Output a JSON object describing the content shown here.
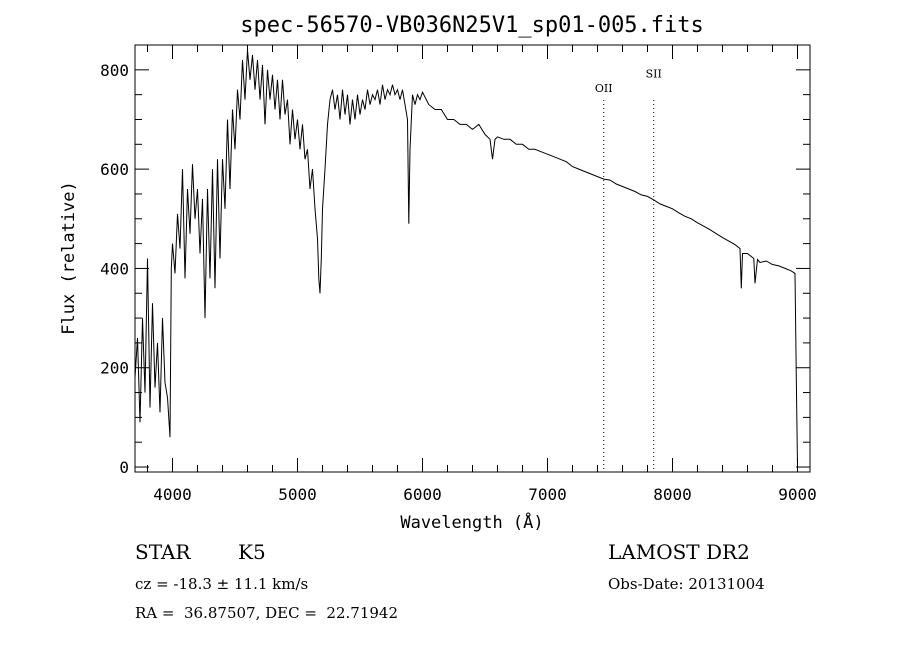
{
  "chart_data": {
    "type": "line",
    "title": "spec-56570-VB036N25V1_sp01-005.fits",
    "xlabel": "Wavelength (Å)",
    "ylabel": "Flux (relative)",
    "xlim": [
      3700,
      9100
    ],
    "ylim": [
      -10,
      850
    ],
    "x_ticks": [
      4000,
      5000,
      6000,
      7000,
      8000,
      9000
    ],
    "y_ticks": [
      0,
      200,
      400,
      600,
      800
    ],
    "grid": false,
    "line_color": "#000000",
    "series": [
      {
        "name": "",
        "points": [
          [
            3700,
            180
          ],
          [
            3720,
            260
          ],
          [
            3740,
            90
          ],
          [
            3760,
            300
          ],
          [
            3780,
            150
          ],
          [
            3800,
            420
          ],
          [
            3820,
            120
          ],
          [
            3840,
            330
          ],
          [
            3860,
            160
          ],
          [
            3880,
            250
          ],
          [
            3900,
            110
          ],
          [
            3920,
            300
          ],
          [
            3940,
            170
          ],
          [
            3960,
            140
          ],
          [
            3980,
            60
          ],
          [
            3990,
            400
          ],
          [
            4000,
            450
          ],
          [
            4020,
            390
          ],
          [
            4040,
            510
          ],
          [
            4060,
            440
          ],
          [
            4080,
            600
          ],
          [
            4100,
            380
          ],
          [
            4120,
            560
          ],
          [
            4140,
            470
          ],
          [
            4160,
            610
          ],
          [
            4180,
            500
          ],
          [
            4200,
            560
          ],
          [
            4220,
            430
          ],
          [
            4240,
            540
          ],
          [
            4260,
            300
          ],
          [
            4280,
            560
          ],
          [
            4300,
            380
          ],
          [
            4320,
            600
          ],
          [
            4340,
            360
          ],
          [
            4360,
            620
          ],
          [
            4380,
            420
          ],
          [
            4400,
            620
          ],
          [
            4420,
            520
          ],
          [
            4440,
            700
          ],
          [
            4460,
            560
          ],
          [
            4480,
            720
          ],
          [
            4500,
            640
          ],
          [
            4520,
            760
          ],
          [
            4540,
            700
          ],
          [
            4560,
            820
          ],
          [
            4580,
            740
          ],
          [
            4600,
            840
          ],
          [
            4620,
            780
          ],
          [
            4640,
            830
          ],
          [
            4660,
            760
          ],
          [
            4680,
            820
          ],
          [
            4700,
            740
          ],
          [
            4720,
            810
          ],
          [
            4740,
            690
          ],
          [
            4760,
            800
          ],
          [
            4780,
            740
          ],
          [
            4800,
            790
          ],
          [
            4820,
            720
          ],
          [
            4840,
            780
          ],
          [
            4860,
            700
          ],
          [
            4880,
            780
          ],
          [
            4900,
            710
          ],
          [
            4920,
            740
          ],
          [
            4940,
            650
          ],
          [
            4960,
            720
          ],
          [
            4980,
            660
          ],
          [
            5000,
            700
          ],
          [
            5020,
            640
          ],
          [
            5040,
            690
          ],
          [
            5060,
            620
          ],
          [
            5080,
            640
          ],
          [
            5100,
            560
          ],
          [
            5120,
            600
          ],
          [
            5140,
            520
          ],
          [
            5160,
            460
          ],
          [
            5170,
            380
          ],
          [
            5180,
            350
          ],
          [
            5190,
            420
          ],
          [
            5200,
            520
          ],
          [
            5220,
            600
          ],
          [
            5240,
            690
          ],
          [
            5260,
            740
          ],
          [
            5280,
            760
          ],
          [
            5300,
            720
          ],
          [
            5320,
            750
          ],
          [
            5340,
            700
          ],
          [
            5360,
            760
          ],
          [
            5380,
            710
          ],
          [
            5400,
            750
          ],
          [
            5420,
            690
          ],
          [
            5440,
            740
          ],
          [
            5460,
            700
          ],
          [
            5480,
            750
          ],
          [
            5500,
            710
          ],
          [
            5520,
            740
          ],
          [
            5540,
            720
          ],
          [
            5560,
            760
          ],
          [
            5580,
            730
          ],
          [
            5600,
            750
          ],
          [
            5620,
            740
          ],
          [
            5640,
            760
          ],
          [
            5660,
            730
          ],
          [
            5680,
            770
          ],
          [
            5700,
            740
          ],
          [
            5720,
            760
          ],
          [
            5740,
            750
          ],
          [
            5760,
            770
          ],
          [
            5780,
            750
          ],
          [
            5800,
            760
          ],
          [
            5820,
            740
          ],
          [
            5840,
            760
          ],
          [
            5860,
            730
          ],
          [
            5880,
            700
          ],
          [
            5890,
            490
          ],
          [
            5900,
            640
          ],
          [
            5920,
            750
          ],
          [
            5940,
            730
          ],
          [
            5960,
            750
          ],
          [
            5980,
            740
          ],
          [
            6000,
            755
          ],
          [
            6050,
            730
          ],
          [
            6100,
            720
          ],
          [
            6150,
            720
          ],
          [
            6200,
            700
          ],
          [
            6250,
            700
          ],
          [
            6300,
            690
          ],
          [
            6350,
            690
          ],
          [
            6400,
            680
          ],
          [
            6450,
            690
          ],
          [
            6500,
            670
          ],
          [
            6540,
            660
          ],
          [
            6560,
            620
          ],
          [
            6580,
            660
          ],
          [
            6600,
            665
          ],
          [
            6650,
            660
          ],
          [
            6700,
            660
          ],
          [
            6750,
            650
          ],
          [
            6800,
            650
          ],
          [
            6850,
            640
          ],
          [
            6900,
            640
          ],
          [
            6950,
            635
          ],
          [
            7000,
            630
          ],
          [
            7050,
            625
          ],
          [
            7100,
            620
          ],
          [
            7150,
            615
          ],
          [
            7200,
            605
          ],
          [
            7250,
            600
          ],
          [
            7300,
            595
          ],
          [
            7350,
            590
          ],
          [
            7400,
            585
          ],
          [
            7450,
            580
          ],
          [
            7500,
            578
          ],
          [
            7550,
            570
          ],
          [
            7600,
            565
          ],
          [
            7650,
            560
          ],
          [
            7700,
            555
          ],
          [
            7750,
            548
          ],
          [
            7800,
            545
          ],
          [
            7850,
            538
          ],
          [
            7900,
            530
          ],
          [
            7950,
            525
          ],
          [
            8000,
            520
          ],
          [
            8050,
            512
          ],
          [
            8100,
            505
          ],
          [
            8150,
            500
          ],
          [
            8200,
            492
          ],
          [
            8250,
            485
          ],
          [
            8300,
            478
          ],
          [
            8350,
            470
          ],
          [
            8400,
            462
          ],
          [
            8450,
            455
          ],
          [
            8500,
            448
          ],
          [
            8540,
            440
          ],
          [
            8550,
            360
          ],
          [
            8560,
            430
          ],
          [
            8600,
            430
          ],
          [
            8650,
            420
          ],
          [
            8660,
            370
          ],
          [
            8680,
            418
          ],
          [
            8700,
            412
          ],
          [
            8750,
            415
          ],
          [
            8800,
            408
          ],
          [
            8850,
            405
          ],
          [
            8900,
            400
          ],
          [
            8950,
            395
          ],
          [
            8980,
            390
          ],
          [
            8990,
            180
          ],
          [
            9000,
            0
          ]
        ]
      }
    ],
    "annotations": [
      {
        "text": "OII",
        "x": 7450,
        "y": 755
      },
      {
        "text": "SII",
        "x": 7850,
        "y": 785
      }
    ],
    "marker_lines_x": [
      7450,
      7850
    ]
  },
  "info": {
    "object_type": "STAR",
    "subclass": "K5",
    "survey": "LAMOST DR2",
    "redshift_line": "cz = -18.3 ± 11.1 km/s",
    "obs_date_line": "Obs-Date: 20131004",
    "coords_line": "RA =  36.87507, DEC =  22.71942"
  }
}
